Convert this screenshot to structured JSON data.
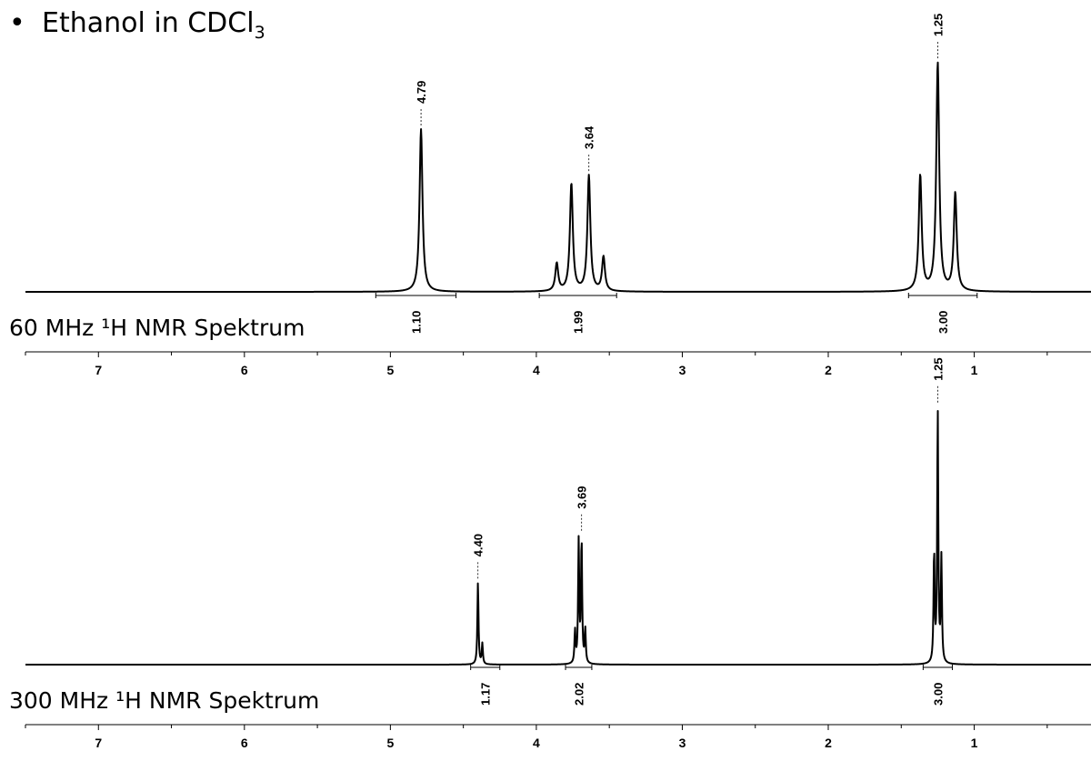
{
  "title": {
    "bullet": "•",
    "text_main": "Ethanol in CDCl",
    "text_sub": "3"
  },
  "chart_data": [
    {
      "type": "line",
      "title": "60 MHz ¹H NMR Spektrum",
      "xlabel": "",
      "ylabel": "",
      "xlim": [
        7.5,
        0.2
      ],
      "x_reversed": true,
      "x_ticks": [
        7,
        6,
        5,
        4,
        3,
        2,
        1
      ],
      "x_tick_labels": [
        "7",
        "6",
        "5",
        "4",
        "3",
        "2",
        "1"
      ],
      "grid": false,
      "line_width_ppm": 0.012,
      "peaks": [
        {
          "shift": 4.79,
          "height": 1.0
        },
        {
          "shift": 3.86,
          "height": 0.17
        },
        {
          "shift": 3.76,
          "height": 0.66
        },
        {
          "shift": 3.64,
          "height": 0.71
        },
        {
          "shift": 3.54,
          "height": 0.21
        },
        {
          "shift": 1.37,
          "height": 0.71
        },
        {
          "shift": 1.25,
          "height": 1.4
        },
        {
          "shift": 1.13,
          "height": 0.6
        }
      ],
      "peak_labels": [
        {
          "shift": 4.79,
          "label": "4.79"
        },
        {
          "shift": 3.64,
          "label": "3.64"
        },
        {
          "shift": 1.25,
          "label": "1.25"
        }
      ],
      "integrals": [
        {
          "from": 5.1,
          "to": 4.55,
          "value": "1.10"
        },
        {
          "from": 3.98,
          "to": 3.45,
          "value": "1.99"
        },
        {
          "from": 1.45,
          "to": 0.98,
          "value": "3.00"
        }
      ]
    },
    {
      "type": "line",
      "title": "300 MHz ¹H NMR Spektrum",
      "xlabel": "",
      "ylabel": "",
      "xlim": [
        7.5,
        0.2
      ],
      "x_reversed": true,
      "x_ticks": [
        7,
        6,
        5,
        4,
        3,
        2,
        1
      ],
      "x_tick_labels": [
        "7",
        "6",
        "5",
        "4",
        "3",
        "2",
        "1"
      ],
      "grid": false,
      "line_width_ppm": 0.0045,
      "peaks": [
        {
          "shift": 4.4,
          "height": 0.56
        },
        {
          "shift": 4.37,
          "height": 0.14
        },
        {
          "shift": 3.735,
          "height": 0.22
        },
        {
          "shift": 3.71,
          "height": 0.83
        },
        {
          "shift": 3.69,
          "height": 0.84
        },
        {
          "shift": 3.665,
          "height": 0.23
        },
        {
          "shift": 1.275,
          "height": 0.75
        },
        {
          "shift": 1.25,
          "height": 1.72
        },
        {
          "shift": 1.225,
          "height": 0.71
        }
      ],
      "peak_labels": [
        {
          "shift": 4.4,
          "label": "4.40"
        },
        {
          "shift": 3.69,
          "label": "3.69"
        },
        {
          "shift": 1.25,
          "label": "1.25"
        }
      ],
      "integrals": [
        {
          "from": 4.45,
          "to": 4.25,
          "value": "1.17"
        },
        {
          "from": 3.8,
          "to": 3.62,
          "value": "2.02"
        },
        {
          "from": 1.35,
          "to": 1.15,
          "value": "3.00"
        }
      ]
    }
  ]
}
